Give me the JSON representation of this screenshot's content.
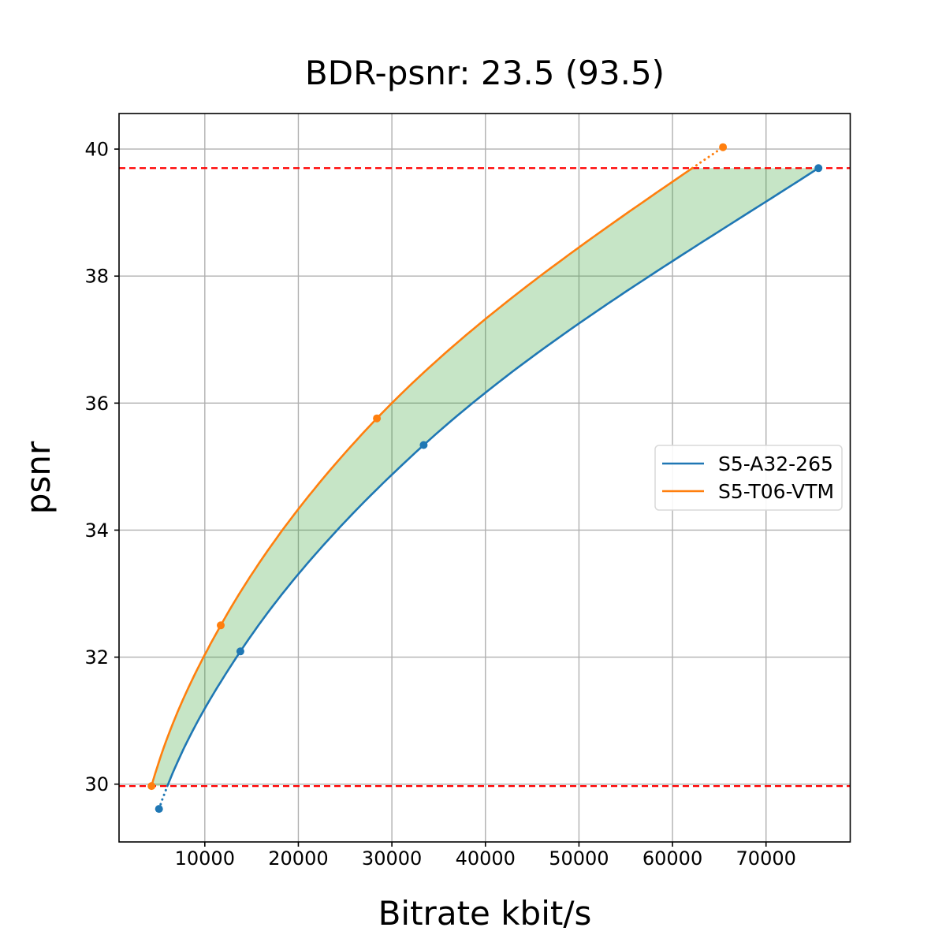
{
  "chart_data": {
    "type": "line",
    "title": "BDR-psnr: 23.5 (93.5)",
    "xlabel": "Bitrate kbit/s",
    "ylabel": "psnr",
    "xlim": [
      830,
      79000
    ],
    "ylim": [
      29.09,
      40.56
    ],
    "xticks": [
      10000,
      20000,
      30000,
      40000,
      50000,
      60000,
      70000
    ],
    "xtick_labels": [
      "10000",
      "20000",
      "30000",
      "40000",
      "50000",
      "60000",
      "70000"
    ],
    "yticks": [
      30,
      32,
      34,
      36,
      38,
      40
    ],
    "ytick_labels": [
      "30",
      "32",
      "34",
      "36",
      "38",
      "40"
    ],
    "grid": true,
    "interpolation": "pchip-log10-bitrate-vs-psnr",
    "series": [
      {
        "name": "S5-A32-265",
        "color": "#1f77b4",
        "points": [
          [
            5100,
            29.61
          ],
          [
            13800,
            32.09
          ],
          [
            33400,
            35.34
          ],
          [
            75600,
            39.7
          ]
        ]
      },
      {
        "name": "S5-T06-VTM",
        "color": "#ff7f0e",
        "points": [
          [
            4300,
            29.97
          ],
          [
            11700,
            32.5
          ],
          [
            28400,
            35.76
          ],
          [
            65400,
            40.03
          ]
        ]
      }
    ],
    "overlap_psnr_range": [
      29.97,
      39.7
    ],
    "hlines": {
      "values": [
        29.97,
        39.7
      ],
      "color": "#ff0000",
      "style": "dashed"
    },
    "fill_between": {
      "color": "#2ca02c",
      "opacity": 0.27
    },
    "legend": {
      "position": "center-right",
      "entries": [
        "S5-A32-265",
        "S5-T06-VTM"
      ]
    },
    "style_colors": {
      "grid": "#b0b0b0",
      "spine": "#000000",
      "legend_border": "#d9d9d9"
    }
  }
}
